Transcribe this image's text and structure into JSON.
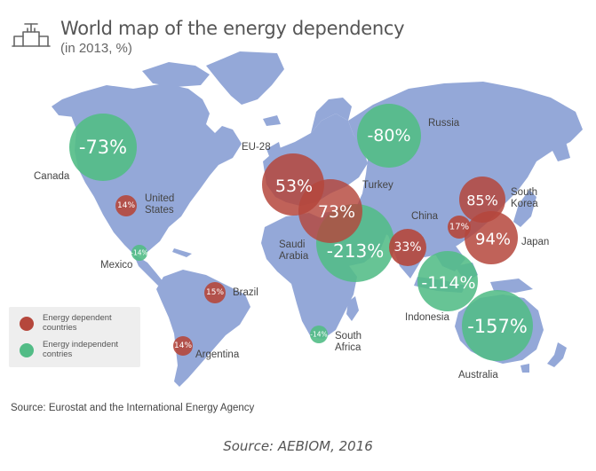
{
  "header": {
    "title": "World map of the energy dependency",
    "subtitle": "(in 2013, %)",
    "icon": "gas-pipeline-valve-icon"
  },
  "colors": {
    "dependent": "#b5473c",
    "independent": "#52bc86",
    "land": "#94a8d8",
    "legend_bg": "#eeeeee"
  },
  "bubbles": [
    {
      "country": "Canada",
      "label": "Canada",
      "value": "-73%",
      "type": "independent"
    },
    {
      "country": "Russia",
      "label": "Russia",
      "value": "-80%",
      "type": "independent"
    },
    {
      "country": "United States",
      "label": "United\nStates",
      "value": "14%",
      "type": "dependent"
    },
    {
      "country": "Mexico",
      "label": "Mexico",
      "value": "-14%",
      "type": "independent"
    },
    {
      "country": "Brazil",
      "label": "Brazil",
      "value": "15%",
      "type": "dependent"
    },
    {
      "country": "Argentina",
      "label": "Argentina",
      "value": "14%",
      "type": "dependent"
    },
    {
      "country": "EU-28",
      "label": "EU-28",
      "value": "53%",
      "type": "dependent"
    },
    {
      "country": "Turkey",
      "label": "Turkey",
      "value": "73%",
      "type": "dependent"
    },
    {
      "country": "Saudi Arabia",
      "label": "Saudi\nArabia",
      "value": "-213%",
      "type": "independent"
    },
    {
      "country": "South Africa",
      "label": "South\nAfrica",
      "value": "-14%",
      "type": "independent"
    },
    {
      "country": "China",
      "label": "China",
      "value": "33%",
      "type": "dependent"
    },
    {
      "country": "South Korea",
      "label": "South\nKorea",
      "value": "85%",
      "type": "dependent"
    },
    {
      "country": "Taiwan",
      "label": "",
      "value": "17%",
      "type": "dependent"
    },
    {
      "country": "Japan",
      "label": "Japan",
      "value": "94%",
      "type": "dependent"
    },
    {
      "country": "Indonesia",
      "label": "Indonesia",
      "value": "-114%",
      "type": "independent"
    },
    {
      "country": "Australia",
      "label": "Australia",
      "value": "-157%",
      "type": "independent"
    }
  ],
  "legend": {
    "dependent_label": "Energy dependent countries",
    "independent_label": "Energy independent contries"
  },
  "footer": {
    "source_note": "Source: Eurostat and  the International Energy Agency",
    "source_credit": "Source: AEBIOM, 2016"
  }
}
